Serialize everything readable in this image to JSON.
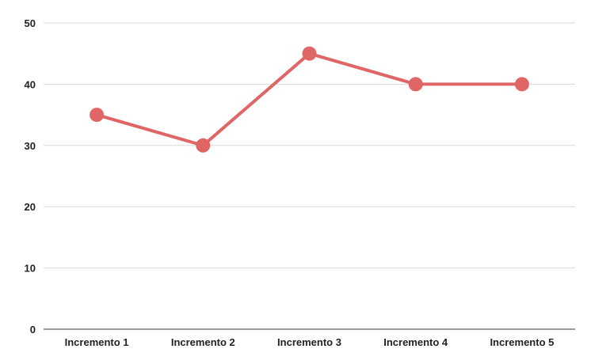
{
  "chart_data": {
    "type": "line",
    "title": "",
    "xlabel": "",
    "ylabel": "",
    "categories": [
      "Incremento 1",
      "Incremento 2",
      "Incremento 3",
      "Incremento 4",
      "Incremento 5"
    ],
    "series": [
      {
        "values": [
          35,
          30,
          45,
          40,
          40
        ],
        "color": "#e06666"
      }
    ],
    "ylim": [
      0,
      50
    ],
    "yticks": [
      "0",
      "10",
      "20",
      "30",
      "40",
      "50"
    ],
    "grid": true,
    "legend": "none"
  }
}
